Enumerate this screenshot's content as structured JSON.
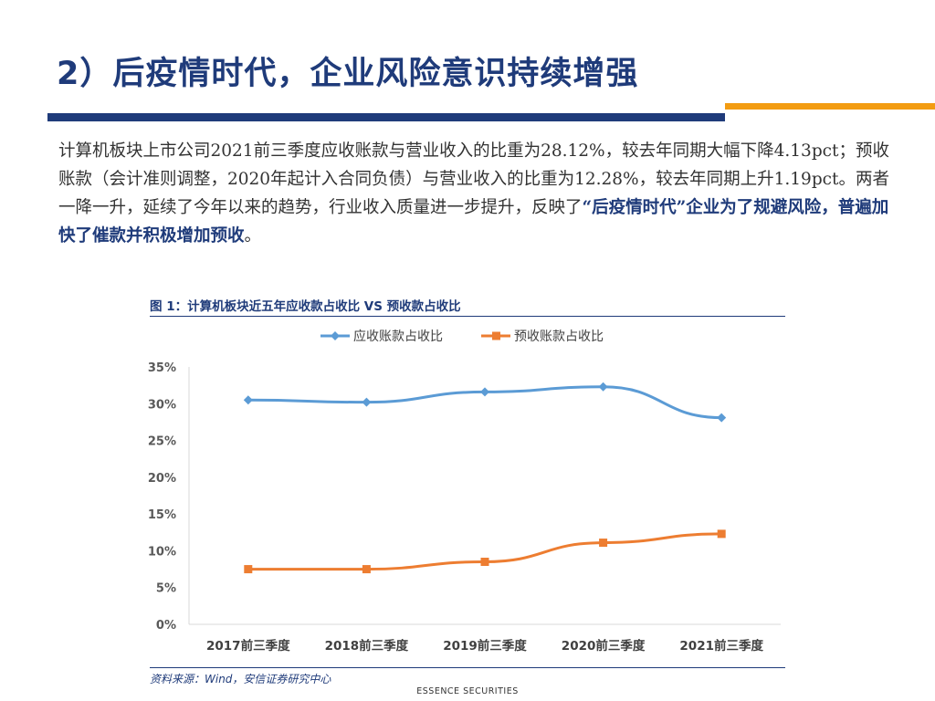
{
  "slide": {
    "title": "2）后疫情时代，企业风险意识持续增强",
    "paragraph_plain": "计算机板块上市公司2021前三季度应收账款与营业收入的比重为28.12%，较去年同期大幅下降4.13pct；预收账款（会计准则调整，2020年起计入合同负债）与营业收入的比重为12.28%，较去年同期上升1.19pct。两者一降一升，延续了今年以来的趋势，行业收入质量进一步提升，反映了",
    "paragraph_bold": "“后疫情时代”企业为了规避风险，普遍加快了催款并积极增加预收",
    "paragraph_end": "。",
    "figure_title": "图 1：计算机板块近五年应收款占收比 VS 预收款占收比",
    "source": "资料来源：Wind，安信证券研究中心",
    "footer": "ESSENCE SECURITIES"
  },
  "colors": {
    "title": "#1f3b7a",
    "receivable": "#5b9bd5",
    "advance": "#ed7d31",
    "accent_orange": "#f39c12"
  },
  "chart_data": {
    "type": "line",
    "categories": [
      "2017前三季度",
      "2018前三季度",
      "2019前三季度",
      "2020前三季度",
      "2021前三季度"
    ],
    "series": [
      {
        "name": "应收账款占收比",
        "values": [
          30.5,
          30.2,
          31.6,
          32.3,
          28.1
        ],
        "color": "#5b9bd5",
        "marker": "diamond"
      },
      {
        "name": "预收账款占收比",
        "values": [
          7.5,
          7.5,
          8.5,
          11.1,
          12.3
        ],
        "color": "#ed7d31",
        "marker": "square"
      }
    ],
    "yticks": [
      "0%",
      "5%",
      "10%",
      "15%",
      "20%",
      "25%",
      "30%",
      "35%"
    ],
    "ylim": [
      0,
      35
    ],
    "legend": "top",
    "grid": false
  }
}
